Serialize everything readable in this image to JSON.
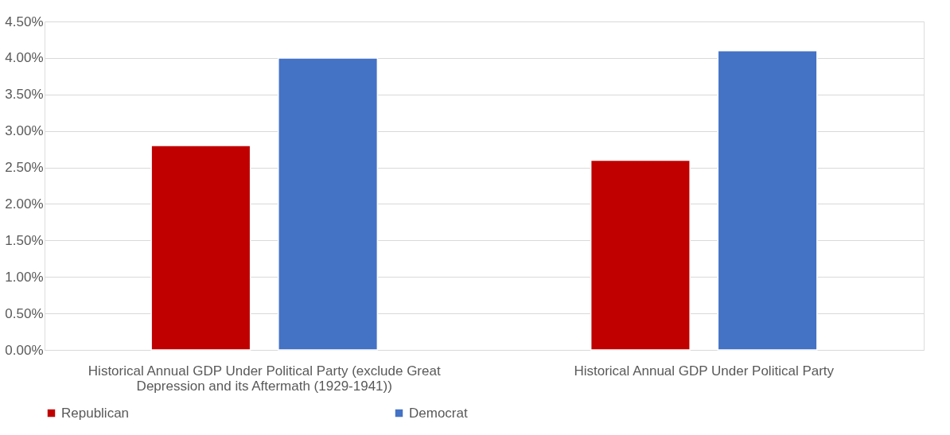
{
  "chart_data": {
    "type": "bar",
    "categories": [
      "Historical Annual GDP Under Political Party (exclude Great Depression and its Aftermath (1929-1941))",
      "Historical Annual GDP Under Political Party"
    ],
    "series": [
      {
        "name": "Republican",
        "color": "#c00000",
        "values": [
          2.8,
          2.6
        ]
      },
      {
        "name": "Democrat",
        "color": "#4472c4",
        "values": [
          4.0,
          4.1
        ]
      }
    ],
    "ylim": [
      0,
      4.5
    ],
    "yticks": [
      {
        "value": 0,
        "label": "0.00%"
      },
      {
        "value": 0.5,
        "label": "0.50%"
      },
      {
        "value": 1,
        "label": "1.00%"
      },
      {
        "value": 1.5,
        "label": "1.50%"
      },
      {
        "value": 2,
        "label": "2.00%"
      },
      {
        "value": 2.5,
        "label": "2.50%"
      },
      {
        "value": 3,
        "label": "3.00%"
      },
      {
        "value": 3.5,
        "label": "3.50%"
      },
      {
        "value": 4,
        "label": "4.00%"
      },
      {
        "value": 4.5,
        "label": "4.50%"
      }
    ],
    "grid": "y",
    "legend": "bottom"
  }
}
